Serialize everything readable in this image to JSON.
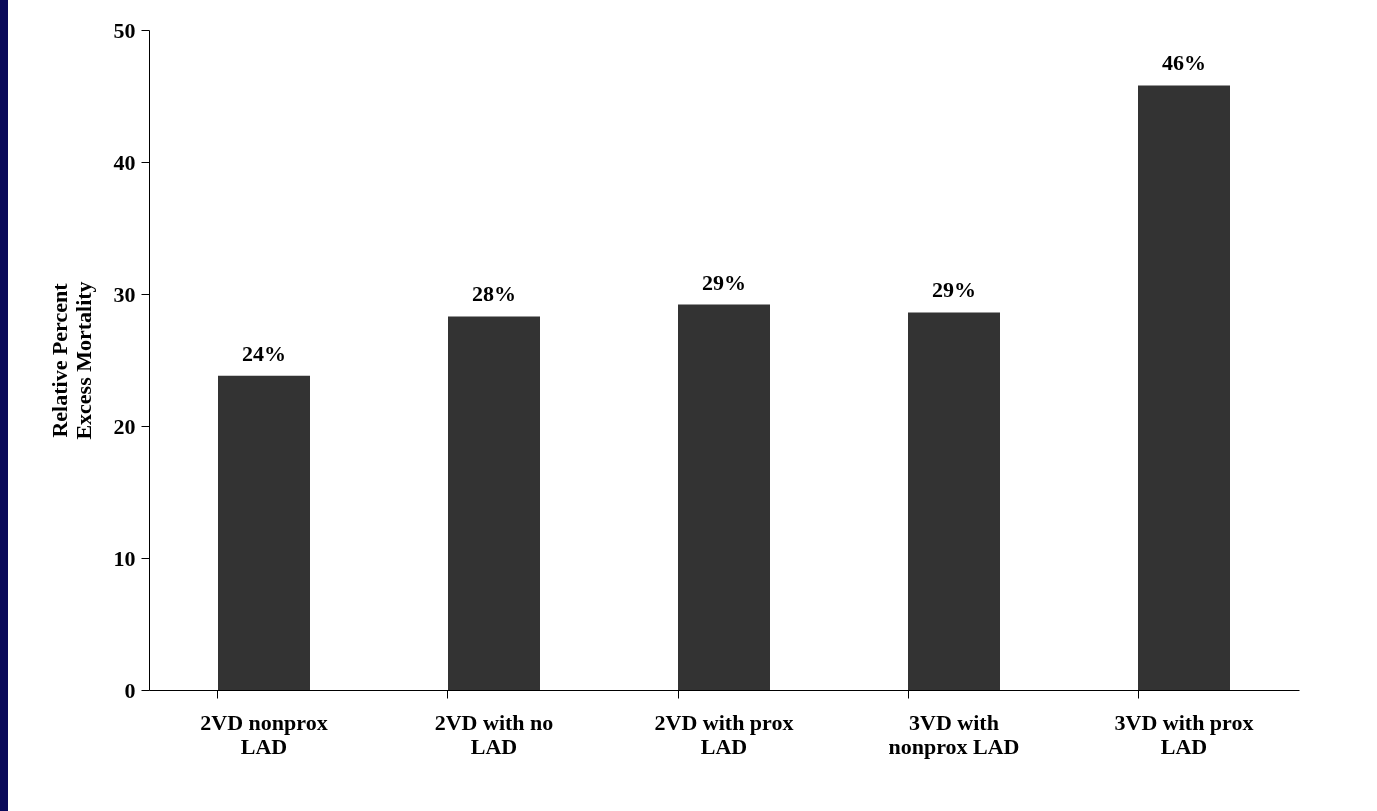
{
  "chart_data": {
    "type": "bar",
    "ylabel": "Relative Percent Excess Mortality",
    "categories": [
      "2VD nonprox LAD",
      "2VD with no LAD",
      "2VD with prox LAD",
      "3VD with nonprox LAD",
      "3VD with prox LAD"
    ],
    "values": [
      23.8,
      28.3,
      29.2,
      28.6,
      45.8
    ],
    "value_labels": [
      "24%",
      "28%",
      "29%",
      "29%",
      "46%"
    ],
    "color": "#333333",
    "ylim": [
      0,
      50
    ],
    "yticks": [
      0,
      10,
      20,
      30,
      40,
      50
    ],
    "grid": false
  }
}
